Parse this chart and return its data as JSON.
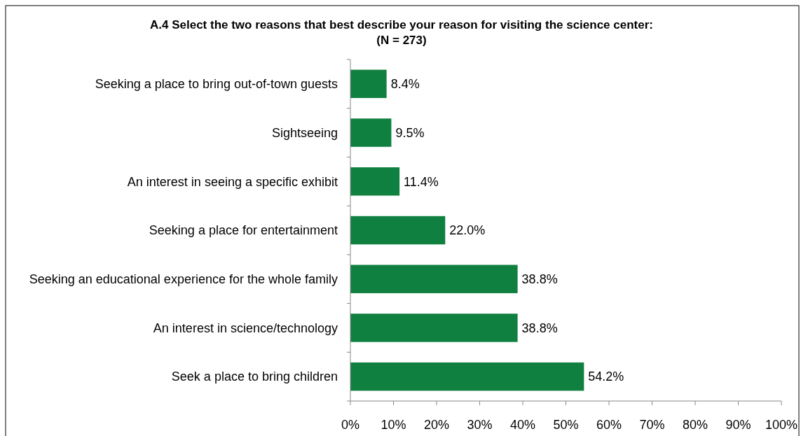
{
  "chart_data": {
    "type": "bar",
    "orientation": "horizontal",
    "title": "A.4 Select the two reasons that best describe your reason for visiting the science center:",
    "subtitle": "(N = 273)",
    "categories": [
      "Seeking a place to bring out-of-town guests",
      "Sightseeing",
      "An interest in seeing a specific exhibit",
      "Seeking a place for entertainment",
      "Seeking an educational experience for the whole family",
      "An interest in science/technology",
      "Seek a place to bring children"
    ],
    "values": [
      8.4,
      9.5,
      11.4,
      22.0,
      38.8,
      38.8,
      54.2
    ],
    "value_labels": [
      "8.4%",
      "9.5%",
      "11.4%",
      "22.0%",
      "38.8%",
      "38.8%",
      "54.2%"
    ],
    "color": "#108040",
    "xlim": [
      0,
      100
    ],
    "xticks": [
      {
        "value": 0,
        "label": "0%"
      },
      {
        "value": 10,
        "label": "10%"
      },
      {
        "value": 20,
        "label": "20%"
      },
      {
        "value": 30,
        "label": "30%"
      },
      {
        "value": 40,
        "label": "40%"
      },
      {
        "value": 50,
        "label": "50%"
      },
      {
        "value": 60,
        "label": "60%"
      },
      {
        "value": 70,
        "label": "70%"
      },
      {
        "value": 80,
        "label": "80%"
      },
      {
        "value": 90,
        "label": "90%"
      },
      {
        "value": 100,
        "label": "100%"
      }
    ],
    "grid": false
  }
}
